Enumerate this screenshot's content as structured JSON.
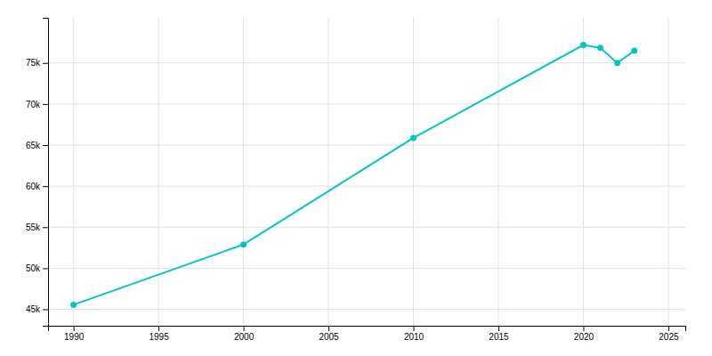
{
  "chart_data": {
    "type": "line",
    "x": [
      1990,
      2000,
      2010,
      2020,
      2021,
      2022,
      2023
    ],
    "values": [
      45559,
      52894,
      65870,
      77190,
      76831,
      75000,
      76500
    ],
    "color": "#00C5C5",
    "marker": "circle",
    "xlim": [
      1988.5,
      2026
    ],
    "ylim": [
      43000,
      80500
    ],
    "xticks": [
      1990,
      1995,
      2000,
      2005,
      2010,
      2015,
      2020,
      2025
    ],
    "yticks": [
      {
        "value": 45000,
        "label": "45k"
      },
      {
        "value": 50000,
        "label": "50k"
      },
      {
        "value": 55000,
        "label": "55k"
      },
      {
        "value": 60000,
        "label": "60k"
      },
      {
        "value": 65000,
        "label": "65k"
      },
      {
        "value": 70000,
        "label": "70k"
      },
      {
        "value": 75000,
        "label": "75k"
      }
    ],
    "grid": true
  }
}
